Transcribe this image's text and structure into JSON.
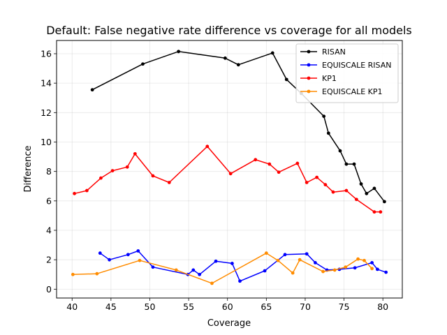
{
  "chart_data": {
    "type": "line",
    "title": "Default: False negative rate difference vs coverage for all models",
    "xlabel": "Coverage",
    "ylabel": "Difference",
    "xlim": [
      38.0,
      82.5
    ],
    "ylim": [
      -0.6,
      16.9
    ],
    "xticks": [
      40,
      45,
      50,
      55,
      60,
      65,
      70,
      75,
      80
    ],
    "yticks": [
      0,
      2,
      4,
      6,
      8,
      10,
      12,
      14,
      16
    ],
    "grid": true,
    "legend_position": "top-right",
    "series": [
      {
        "name": "RISAN",
        "color": "#000000",
        "points": [
          [
            42.6,
            13.55
          ],
          [
            49.1,
            15.3
          ],
          [
            53.7,
            16.15
          ],
          [
            59.7,
            15.7
          ],
          [
            61.4,
            15.25
          ],
          [
            65.8,
            16.05
          ],
          [
            67.6,
            14.25
          ],
          [
            69.5,
            13.3
          ],
          [
            72.4,
            11.75
          ],
          [
            73.0,
            10.6
          ],
          [
            74.5,
            9.4
          ],
          [
            75.3,
            8.5
          ],
          [
            76.3,
            8.5
          ],
          [
            77.2,
            7.15
          ],
          [
            77.9,
            6.5
          ],
          [
            78.9,
            6.85
          ],
          [
            80.2,
            5.95
          ]
        ]
      },
      {
        "name": "EQUISCALE RISAN",
        "color": "#0000ff",
        "points": [
          [
            43.6,
            2.45
          ],
          [
            44.8,
            2.0
          ],
          [
            47.2,
            2.35
          ],
          [
            48.5,
            2.6
          ],
          [
            50.4,
            1.5
          ],
          [
            54.9,
            1.0
          ],
          [
            55.6,
            1.3
          ],
          [
            56.4,
            1.0
          ],
          [
            58.5,
            1.9
          ],
          [
            60.6,
            1.75
          ],
          [
            61.6,
            0.55
          ],
          [
            64.8,
            1.25
          ],
          [
            67.4,
            2.35
          ],
          [
            70.2,
            2.4
          ],
          [
            71.3,
            1.8
          ],
          [
            72.8,
            1.3
          ],
          [
            74.4,
            1.35
          ],
          [
            76.4,
            1.45
          ],
          [
            78.6,
            1.8
          ],
          [
            79.3,
            1.35
          ],
          [
            80.4,
            1.15
          ]
        ]
      },
      {
        "name": "KP1",
        "color": "#ff0000",
        "points": [
          [
            40.3,
            6.5
          ],
          [
            41.9,
            6.7
          ],
          [
            43.7,
            7.55
          ],
          [
            45.2,
            8.05
          ],
          [
            47.1,
            8.3
          ],
          [
            48.1,
            9.2
          ],
          [
            50.4,
            7.7
          ],
          [
            52.5,
            7.25
          ],
          [
            57.4,
            9.7
          ],
          [
            60.4,
            7.85
          ],
          [
            63.6,
            8.8
          ],
          [
            65.4,
            8.5
          ],
          [
            66.6,
            7.95
          ],
          [
            69.0,
            8.55
          ],
          [
            70.2,
            7.25
          ],
          [
            71.5,
            7.6
          ],
          [
            72.6,
            7.1
          ],
          [
            73.6,
            6.6
          ],
          [
            75.3,
            6.7
          ],
          [
            76.6,
            6.1
          ],
          [
            78.9,
            5.25
          ],
          [
            79.7,
            5.25
          ]
        ]
      },
      {
        "name": "EQUISCALE KP1",
        "color": "#ff8c00",
        "points": [
          [
            40.1,
            1.0
          ],
          [
            43.2,
            1.05
          ],
          [
            48.7,
            1.95
          ],
          [
            53.4,
            1.3
          ],
          [
            58.0,
            0.4
          ],
          [
            65.0,
            2.45
          ],
          [
            66.5,
            1.95
          ],
          [
            68.4,
            1.1
          ],
          [
            69.3,
            2.0
          ],
          [
            72.3,
            1.2
          ],
          [
            73.8,
            1.3
          ],
          [
            75.2,
            1.5
          ],
          [
            76.8,
            2.05
          ],
          [
            77.6,
            1.95
          ],
          [
            78.6,
            1.4
          ]
        ]
      }
    ]
  }
}
